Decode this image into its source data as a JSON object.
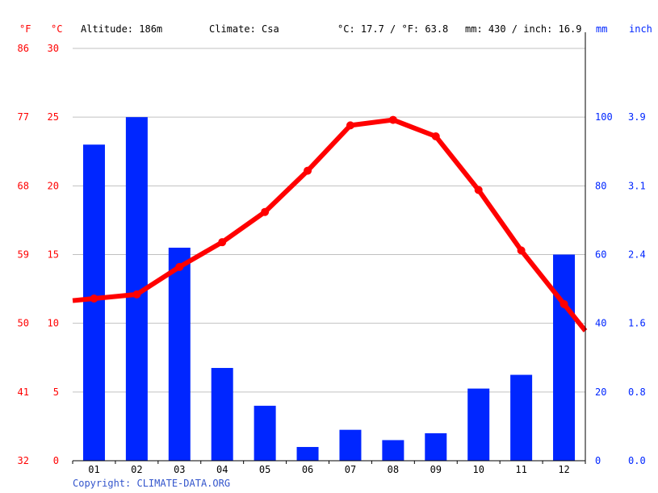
{
  "header": {
    "altitude": "Altitude: 186m",
    "climate": "Climate: Csa",
    "temp_avg": "°C: 17.7 / °F: 63.8",
    "precip_total": "mm: 430 / inch: 16.9"
  },
  "units": {
    "f": "°F",
    "c": "°C",
    "mm": "mm",
    "inch": "inch"
  },
  "copyright": "Copyright: CLIMATE-DATA.ORG",
  "colors": {
    "temp": "#ff0000",
    "precip": "#0026ff",
    "label_red": "#ff0000",
    "label_blue": "#0026ff",
    "copyright": "#3355cc",
    "grid": "#c0c0c0"
  },
  "chart_data": {
    "type": "bar+line",
    "categories": [
      "01",
      "02",
      "03",
      "04",
      "05",
      "06",
      "07",
      "08",
      "09",
      "10",
      "11",
      "12"
    ],
    "series": [
      {
        "kind": "bar",
        "axis": "mm",
        "values": [
          92,
          100,
          62,
          27,
          16,
          4,
          9,
          6,
          8,
          21,
          25,
          60
        ]
      },
      {
        "kind": "line",
        "axis": "C",
        "values": [
          11.8,
          12.1,
          14.1,
          15.9,
          18.1,
          21.1,
          24.4,
          24.8,
          23.6,
          19.7,
          15.3,
          11.4
        ]
      }
    ],
    "axes": {
      "left_f": {
        "ticks": [
          "86",
          "77",
          "68",
          "59",
          "50",
          "41",
          "32"
        ]
      },
      "left_c": {
        "min": 0,
        "max": 30,
        "ticks": [
          "30",
          "25",
          "20",
          "15",
          "10",
          "5",
          "0"
        ]
      },
      "right_mm": {
        "min": 0,
        "max": 100,
        "ticks": [
          "100",
          "80",
          "60",
          "40",
          "20",
          "0"
        ]
      },
      "right_inch": {
        "ticks": [
          "3.9",
          "3.1",
          "2.4",
          "1.6",
          "0.8",
          "0.0"
        ]
      }
    },
    "grid": true
  }
}
